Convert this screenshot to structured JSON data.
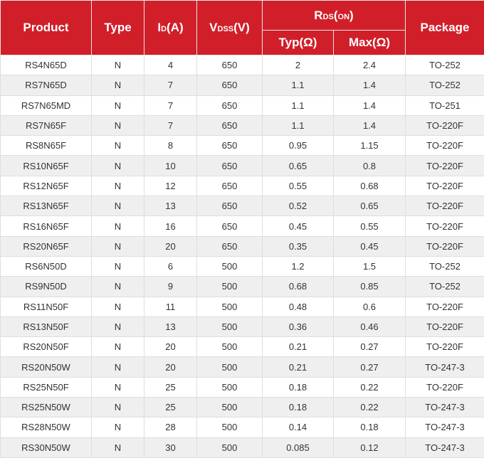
{
  "header": {
    "product": "Product",
    "type": "Type",
    "id_main": "I",
    "id_sub": "D",
    "id_unit": "(A)",
    "vdss_main": "V",
    "vdss_sub": "DSS",
    "vdss_unit": "(V)",
    "rds_main": "R",
    "rds_sub": "DS",
    "rds_unit_open": "(",
    "rds_unit_sub": "ON",
    "rds_unit_close": ")",
    "typ": "Typ(Ω)",
    "max": "Max(Ω)",
    "package": "Package"
  },
  "colors": {
    "header_bg": "#d11f2a",
    "row_alt": "#efefef"
  },
  "rows": [
    [
      "RS4N65D",
      "N",
      "4",
      "650",
      "2",
      "2.4",
      "TO-252"
    ],
    [
      "RS7N65D",
      "N",
      "7",
      "650",
      "1.1",
      "1.4",
      "TO-252"
    ],
    [
      "RS7N65MD",
      "N",
      "7",
      "650",
      "1.1",
      "1.4",
      "TO-251"
    ],
    [
      "RS7N65F",
      "N",
      "7",
      "650",
      "1.1",
      "1.4",
      "TO-220F"
    ],
    [
      "RS8N65F",
      "N",
      "8",
      "650",
      "0.95",
      "1.15",
      "TO-220F"
    ],
    [
      "RS10N65F",
      "N",
      "10",
      "650",
      "0.65",
      "0.8",
      "TO-220F"
    ],
    [
      "RS12N65F",
      "N",
      "12",
      "650",
      "0.55",
      "0.68",
      "TO-220F"
    ],
    [
      "RS13N65F",
      "N",
      "13",
      "650",
      "0.52",
      "0.65",
      "TO-220F"
    ],
    [
      "RS16N65F",
      "N",
      "16",
      "650",
      "0.45",
      "0.55",
      "TO-220F"
    ],
    [
      "RS20N65F",
      "N",
      "20",
      "650",
      "0.35",
      "0.45",
      "TO-220F"
    ],
    [
      "RS6N50D",
      "N",
      "6",
      "500",
      "1.2",
      "1.5",
      "TO-252"
    ],
    [
      "RS9N50D",
      "N",
      "9",
      "500",
      "0.68",
      "0.85",
      "TO-252"
    ],
    [
      "RS11N50F",
      "N",
      "11",
      "500",
      "0.48",
      "0.6",
      "TO-220F"
    ],
    [
      "RS13N50F",
      "N",
      "13",
      "500",
      "0.36",
      "0.46",
      "TO-220F"
    ],
    [
      "RS20N50F",
      "N",
      "20",
      "500",
      "0.21",
      "0.27",
      "TO-220F"
    ],
    [
      "RS20N50W",
      "N",
      "20",
      "500",
      "0.21",
      "0.27",
      "TO-247-3"
    ],
    [
      "RS25N50F",
      "N",
      "25",
      "500",
      "0.18",
      "0.22",
      "TO-220F"
    ],
    [
      "RS25N50W",
      "N",
      "25",
      "500",
      "0.18",
      "0.22",
      "TO-247-3"
    ],
    [
      "RS28N50W",
      "N",
      "28",
      "500",
      "0.14",
      "0.18",
      "TO-247-3"
    ],
    [
      "RS30N50W",
      "N",
      "30",
      "500",
      "0.085",
      "0.12",
      "TO-247-3"
    ]
  ]
}
